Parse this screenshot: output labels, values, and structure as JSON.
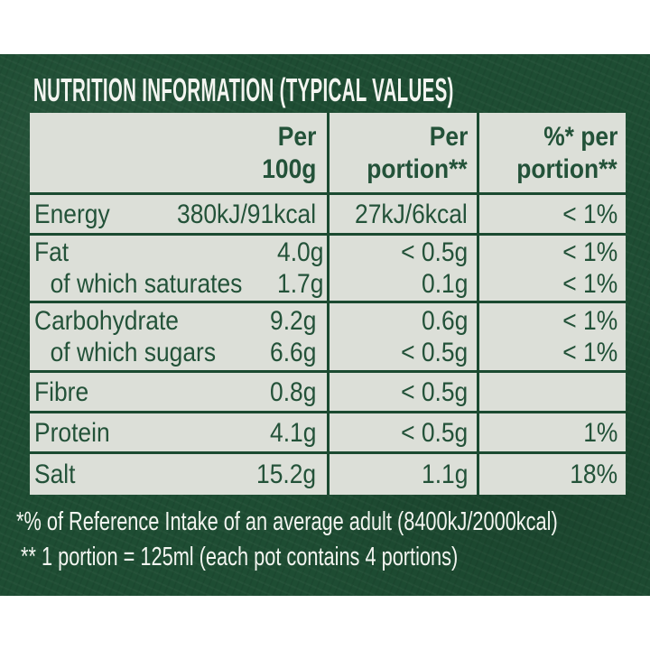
{
  "title": "NUTRITION INFORMATION (TYPICAL VALUES)",
  "colors": {
    "background_green": "#1e4d33",
    "table_background": "#dcdfd8",
    "table_text_green": "#235239",
    "divider_green": "#1b4a31",
    "text_white": "#f3f5f0",
    "page_background": "#ffffff"
  },
  "table": {
    "header": {
      "per100g": [
        "Per",
        "100g"
      ],
      "portion": [
        "Per",
        "portion**"
      ],
      "pct": [
        "%* per",
        "portion**"
      ]
    },
    "rows": [
      {
        "names": [
          "Energy"
        ],
        "per100": [
          "380kJ/91kcal"
        ],
        "portion": [
          "27kJ/6kcal"
        ],
        "pct": [
          "< 1%"
        ]
      },
      {
        "names": [
          "Fat",
          "of which saturates"
        ],
        "per100": [
          "4.0g",
          "1.7g"
        ],
        "portion": [
          "< 0.5g",
          "0.1g"
        ],
        "pct": [
          "< 1%",
          "< 1%"
        ]
      },
      {
        "names": [
          "Carbohydrate",
          "of which sugars"
        ],
        "per100": [
          "9.2g",
          "6.6g"
        ],
        "portion": [
          "0.6g",
          "< 0.5g"
        ],
        "pct": [
          "< 1%",
          "< 1%"
        ]
      },
      {
        "names": [
          "Fibre"
        ],
        "per100": [
          "0.8g"
        ],
        "portion": [
          "< 0.5g"
        ],
        "pct": [
          ""
        ]
      },
      {
        "names": [
          "Protein"
        ],
        "per100": [
          "4.1g"
        ],
        "portion": [
          "< 0.5g"
        ],
        "pct": [
          "1%"
        ]
      },
      {
        "names": [
          "Salt"
        ],
        "per100": [
          "15.2g"
        ],
        "portion": [
          "1.1g"
        ],
        "pct": [
          "18%"
        ]
      }
    ]
  },
  "footnotes": [
    "*% of Reference Intake of an average adult (8400kJ/2000kcal)",
    "** 1 portion = 125ml (each pot contains 4 portions)"
  ]
}
